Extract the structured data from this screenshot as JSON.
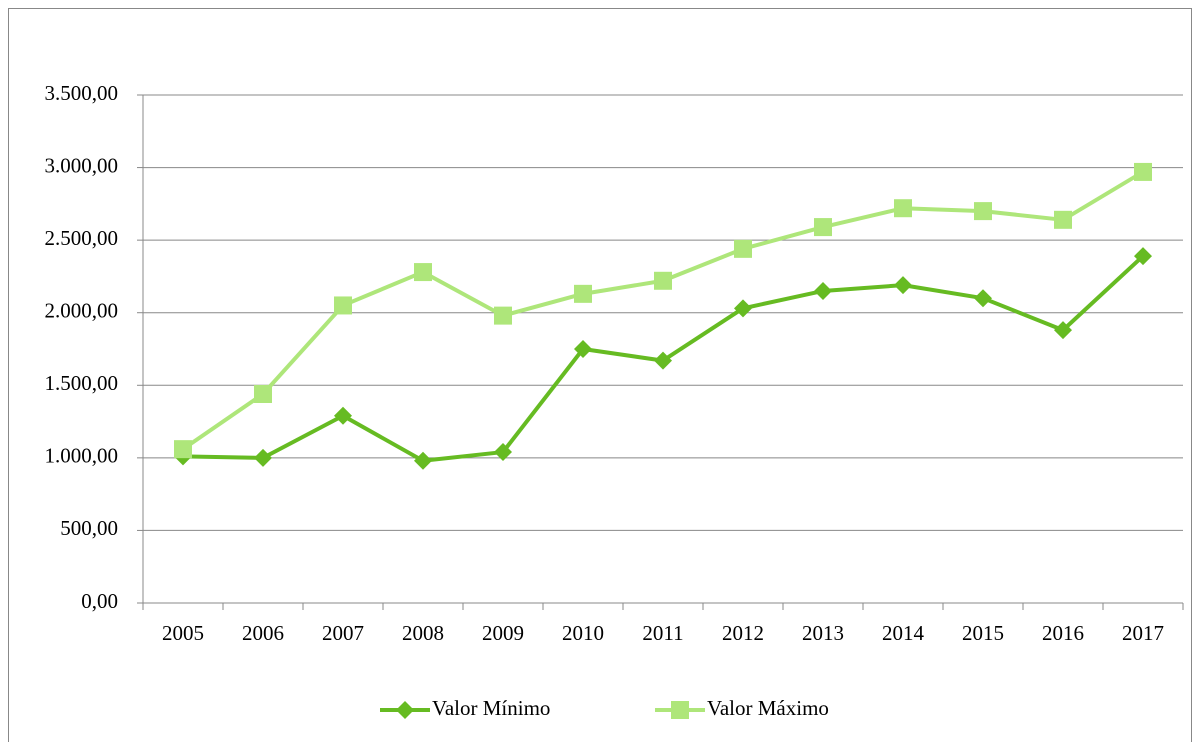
{
  "chart_data": {
    "type": "line",
    "categories": [
      "2005",
      "2006",
      "2007",
      "2008",
      "2009",
      "2010",
      "2011",
      "2012",
      "2013",
      "2014",
      "2015",
      "2016",
      "2017"
    ],
    "series": [
      {
        "name": "Valor Mínimo",
        "color": "#66bb22",
        "marker": "diamond",
        "values": [
          1010,
          1000,
          1290,
          980,
          1040,
          1750,
          1670,
          2030,
          2150,
          2190,
          2100,
          1880,
          2390
        ]
      },
      {
        "name": "Valor Máximo",
        "color": "#aee67a",
        "marker": "square",
        "values": [
          1060,
          1440,
          2050,
          2280,
          1980,
          2130,
          2220,
          2440,
          2590,
          2720,
          2700,
          2640,
          2970
        ]
      }
    ],
    "ylim": [
      0,
      3500
    ],
    "yticks": [
      {
        "value": 0,
        "label": "0,00"
      },
      {
        "value": 500,
        "label": "500,00"
      },
      {
        "value": 1000,
        "label": "1.000,00"
      },
      {
        "value": 1500,
        "label": "1.500,00"
      },
      {
        "value": 2000,
        "label": "2.000,00"
      },
      {
        "value": 2500,
        "label": "2.500,00"
      },
      {
        "value": 3000,
        "label": "3.000,00"
      },
      {
        "value": 3500,
        "label": "3.500,00"
      }
    ],
    "grid": true,
    "legend": "bottom"
  }
}
